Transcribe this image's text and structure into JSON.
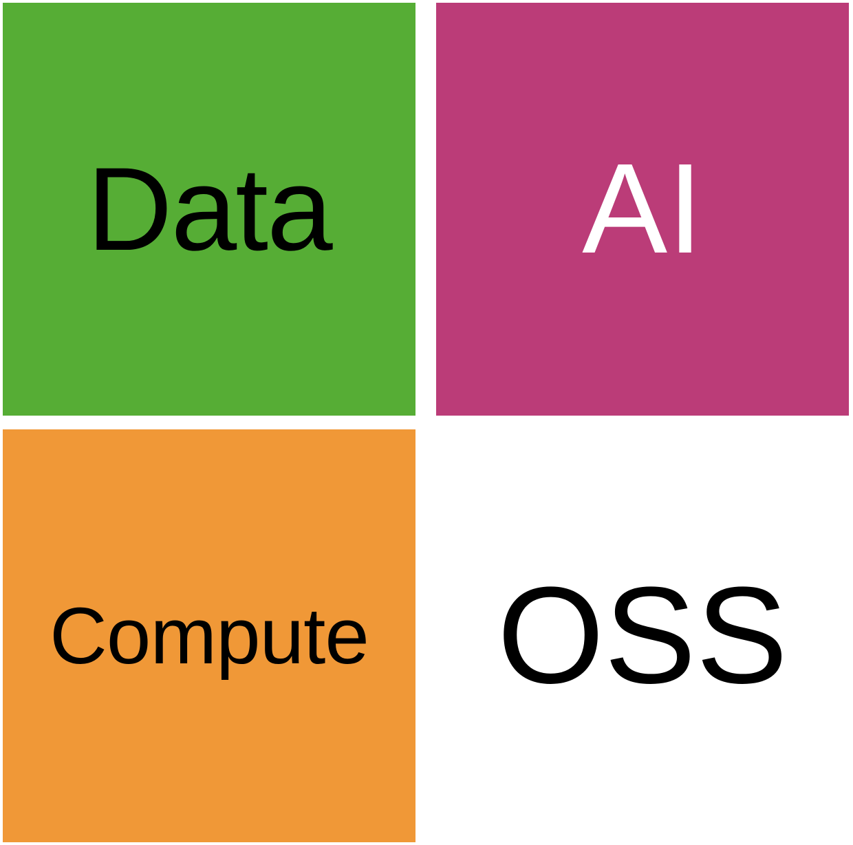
{
  "tiles": [
    {
      "label": "Data",
      "background": "#56ad35",
      "text_color": "#000000"
    },
    {
      "label": "AI",
      "background": "#bb3c78",
      "text_color": "#ffffff"
    },
    {
      "label": "Compute",
      "background": "#f09837",
      "text_color": "#000000"
    },
    {
      "label": "OSS",
      "background": "#ffffff",
      "text_color": "#000000"
    }
  ]
}
